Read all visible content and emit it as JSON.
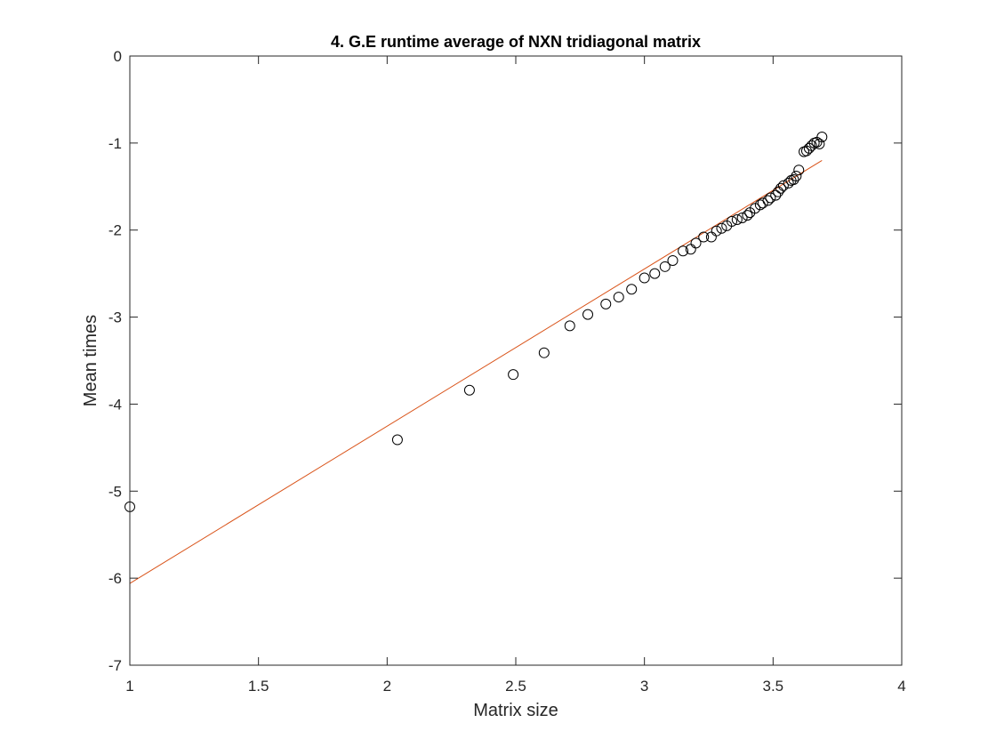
{
  "chart_data": {
    "type": "scatter",
    "title": "4. G.E runtime average of NXN tridiagonal matrix",
    "xlabel": "Matrix size",
    "ylabel": "Mean times",
    "xlim": [
      1,
      4
    ],
    "ylim": [
      -7,
      0
    ],
    "xticks": [
      1,
      1.5,
      2,
      2.5,
      3,
      3.5,
      4
    ],
    "xtick_labels": [
      "1",
      "1.5",
      "2",
      "2.5",
      "3",
      "3.5",
      "4"
    ],
    "yticks": [
      -7,
      -6,
      -5,
      -4,
      -3,
      -2,
      -1,
      0
    ],
    "ytick_labels": [
      "-7",
      "-6",
      "-5",
      "-4",
      "-3",
      "-2",
      "-1",
      "0"
    ],
    "grid": false,
    "legend": "none",
    "colors": {
      "points": "#000000",
      "fit_line": "#d95319",
      "axes": "#262626"
    },
    "series": [
      {
        "kind": "points",
        "marker": "circle-open",
        "x": [
          1.0,
          2.04,
          2.32,
          2.49,
          2.61,
          2.71,
          2.78,
          2.85,
          2.9,
          2.95,
          3.0,
          3.04,
          3.08,
          3.11,
          3.15,
          3.18,
          3.2,
          3.23,
          3.26,
          3.28,
          3.3,
          3.32,
          3.34,
          3.36,
          3.38,
          3.4,
          3.41,
          3.43,
          3.45,
          3.46,
          3.48,
          3.49,
          3.51,
          3.52,
          3.53,
          3.54,
          3.56,
          3.57,
          3.58,
          3.59,
          3.6,
          3.62,
          3.63,
          3.64,
          3.65,
          3.66,
          3.67,
          3.68,
          3.69
        ],
        "y": [
          -5.18,
          -4.41,
          -3.84,
          -3.66,
          -3.41,
          -3.1,
          -2.97,
          -2.85,
          -2.77,
          -2.68,
          -2.55,
          -2.5,
          -2.42,
          -2.35,
          -2.24,
          -2.22,
          -2.15,
          -2.08,
          -2.08,
          -2.01,
          -1.98,
          -1.95,
          -1.9,
          -1.88,
          -1.86,
          -1.83,
          -1.8,
          -1.75,
          -1.71,
          -1.69,
          -1.66,
          -1.63,
          -1.6,
          -1.56,
          -1.52,
          -1.49,
          -1.46,
          -1.43,
          -1.42,
          -1.38,
          -1.31,
          -1.1,
          -1.09,
          -1.06,
          -1.03,
          -1.0,
          -0.99,
          -1.01,
          -0.93
        ]
      },
      {
        "kind": "fit-line",
        "x": [
          1.0,
          3.69
        ],
        "y": [
          -6.06,
          -1.2
        ]
      }
    ]
  }
}
